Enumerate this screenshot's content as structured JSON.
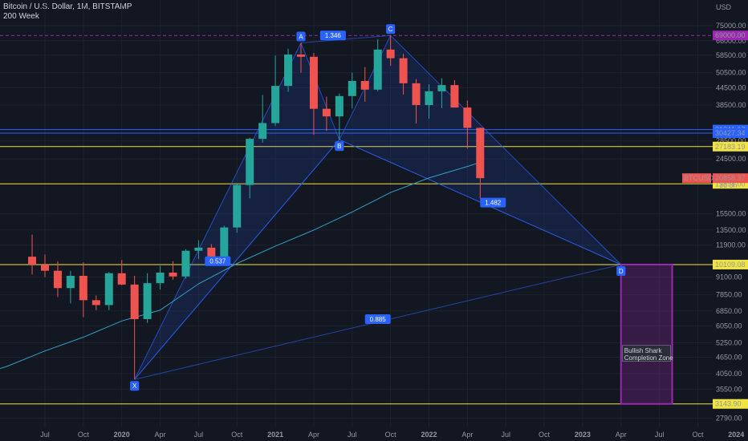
{
  "header": {
    "symbol": "Bitcoin / U.S. Dollar, 1M, BITSTAMP",
    "indicator": "200 Week"
  },
  "colors": {
    "bg": "#131722",
    "up": "#26a69a",
    "down": "#ef5350",
    "ma": "#2fa0c8",
    "pattern": "#2962ff",
    "yellow": "#f0e442",
    "zone": "#9c27b0"
  },
  "chart_data": {
    "type": "candlestick",
    "y_scale": "log",
    "currency_label": "USD",
    "ylim": [
      2600,
      88000
    ],
    "y_ticks": [
      2790,
      3550,
      4050,
      4650,
      5250,
      6050,
      6850,
      7850,
      9100,
      11900,
      13500,
      15500,
      24500,
      28500,
      38500,
      44500,
      50500,
      58500,
      66000,
      75000
    ],
    "y_tick_labels": [
      "2790.00",
      "3550.00",
      "4050.00",
      "4650.00",
      "5250.00",
      "6050.00",
      "6850.00",
      "7850.00",
      "9100.00",
      "11900.00",
      "13500.00",
      "15500.00",
      "24500.00",
      "28500.00",
      "38500.00",
      "44500.00",
      "50500.00",
      "58500.00",
      "66000.00",
      "75000.00"
    ],
    "x_tick_labels": [
      "Jul",
      "Oct",
      "2020",
      "Apr",
      "Jul",
      "Oct",
      "2021",
      "Apr",
      "Jul",
      "Oct",
      "2022",
      "Apr",
      "Jul",
      "Oct",
      "2023",
      "Apr",
      "Jul",
      "Oct",
      "2024"
    ],
    "x_tick_months": [
      0,
      3,
      6,
      9,
      12,
      15,
      18,
      21,
      24,
      27,
      30,
      33,
      36,
      39,
      42,
      45,
      48,
      51,
      54
    ],
    "month0": "Jul 2019",
    "candles": [
      {
        "m": -1,
        "o": 10800,
        "h": 13000,
        "l": 9300,
        "c": 10100
      },
      {
        "m": 0,
        "o": 10100,
        "h": 11000,
        "l": 9100,
        "c": 9600
      },
      {
        "m": 1,
        "o": 9600,
        "h": 10400,
        "l": 7700,
        "c": 8300
      },
      {
        "m": 2,
        "o": 8300,
        "h": 9600,
        "l": 7300,
        "c": 9200
      },
      {
        "m": 3,
        "o": 9200,
        "h": 10300,
        "l": 6500,
        "c": 7500
      },
      {
        "m": 4,
        "o": 7500,
        "h": 7800,
        "l": 6900,
        "c": 7200
      },
      {
        "m": 5,
        "o": 7200,
        "h": 9500,
        "l": 6900,
        "c": 9400
      },
      {
        "m": 6,
        "o": 9400,
        "h": 10500,
        "l": 8500,
        "c": 8550
      },
      {
        "m": 7,
        "o": 8550,
        "h": 9200,
        "l": 3860,
        "c": 6400
      },
      {
        "m": 8,
        "o": 6400,
        "h": 9400,
        "l": 6200,
        "c": 8650
      },
      {
        "m": 9,
        "o": 8650,
        "h": 10000,
        "l": 8200,
        "c": 9450
      },
      {
        "m": 10,
        "o": 9450,
        "h": 10400,
        "l": 8900,
        "c": 9150
      },
      {
        "m": 11,
        "o": 9150,
        "h": 11500,
        "l": 9000,
        "c": 11350
      },
      {
        "m": 12,
        "o": 11350,
        "h": 12400,
        "l": 10600,
        "c": 11650
      },
      {
        "m": 13,
        "o": 11650,
        "h": 12000,
        "l": 10000,
        "c": 10800
      },
      {
        "m": 14,
        "o": 10800,
        "h": 14000,
        "l": 10500,
        "c": 13800
      },
      {
        "m": 15,
        "o": 13800,
        "h": 19800,
        "l": 13200,
        "c": 19700
      },
      {
        "m": 16,
        "o": 19700,
        "h": 29300,
        "l": 17600,
        "c": 29000
      },
      {
        "m": 17,
        "o": 29000,
        "h": 41900,
        "l": 28100,
        "c": 33100
      },
      {
        "m": 18,
        "o": 33100,
        "h": 58300,
        "l": 32300,
        "c": 45200
      },
      {
        "m": 19,
        "o": 45200,
        "h": 61700,
        "l": 43000,
        "c": 58800
      },
      {
        "m": 20,
        "o": 58800,
        "h": 64800,
        "l": 50500,
        "c": 57700
      },
      {
        "m": 21,
        "o": 57700,
        "h": 59600,
        "l": 30000,
        "c": 37300
      },
      {
        "m": 22,
        "o": 37300,
        "h": 41300,
        "l": 31000,
        "c": 35000
      },
      {
        "m": 23,
        "o": 35000,
        "h": 42400,
        "l": 28800,
        "c": 41500
      },
      {
        "m": 24,
        "o": 41500,
        "h": 50500,
        "l": 37400,
        "c": 47100
      },
      {
        "m": 25,
        "o": 47100,
        "h": 52900,
        "l": 39600,
        "c": 43800
      },
      {
        "m": 26,
        "o": 43800,
        "h": 66900,
        "l": 43200,
        "c": 61300
      },
      {
        "m": 27,
        "o": 61300,
        "h": 69000,
        "l": 53500,
        "c": 57000
      },
      {
        "m": 28,
        "o": 57000,
        "h": 59100,
        "l": 42000,
        "c": 46200
      },
      {
        "m": 29,
        "o": 46200,
        "h": 47800,
        "l": 33000,
        "c": 38500
      },
      {
        "m": 30,
        "o": 38500,
        "h": 45800,
        "l": 34300,
        "c": 43200
      },
      {
        "m": 31,
        "o": 43200,
        "h": 48200,
        "l": 37500,
        "c": 45500
      },
      {
        "m": 32,
        "o": 45500,
        "h": 47400,
        "l": 37700,
        "c": 37700
      },
      {
        "m": 33,
        "o": 37700,
        "h": 40000,
        "l": 26700,
        "c": 31800
      },
      {
        "m": 34,
        "o": 31800,
        "h": 31900,
        "l": 17600,
        "c": 20858
      }
    ],
    "ma_200w": [
      [
        -6,
        3900
      ],
      [
        -3,
        4300
      ],
      [
        0,
        4900
      ],
      [
        3,
        5500
      ],
      [
        6,
        6300
      ],
      [
        9,
        6900
      ],
      [
        12,
        8600
      ],
      [
        15,
        10200
      ],
      [
        18,
        11800
      ],
      [
        21,
        13500
      ],
      [
        24,
        15700
      ],
      [
        27,
        18500
      ],
      [
        30,
        20900
      ],
      [
        33,
        23000
      ],
      [
        34,
        23800
      ]
    ],
    "pattern": {
      "name": "Bullish Shark",
      "points": [
        {
          "label": "X",
          "m": 7,
          "price": 3860
        },
        {
          "label": "A",
          "m": 20,
          "price": 64800
        },
        {
          "label": "B",
          "m": 23,
          "price": 28800
        },
        {
          "label": "C",
          "m": 27,
          "price": 69000
        },
        {
          "label": "D",
          "m": 45,
          "price": 10109
        }
      ],
      "ratios": [
        {
          "text": "0.537",
          "m": 13.5,
          "price": 10400
        },
        {
          "text": "1.346",
          "m": 22.5,
          "price": 69000
        },
        {
          "text": "1.482",
          "m": 35,
          "price": 17000
        },
        {
          "text": "0.885",
          "m": 26,
          "price": 6400
        }
      ],
      "zone": {
        "label": "Bullish Shark Completion Zone",
        "m_from": 45,
        "m_to": 49,
        "price_top": 10109,
        "price_bottom": 3143.9
      }
    },
    "horizontal_levels": [
      {
        "price": 69000,
        "label": "69000.00",
        "color": "#9c27b0",
        "style": "dashed"
      },
      {
        "price": 31341.17,
        "label": "31341.17",
        "color": "#2962ff",
        "style": "solid"
      },
      {
        "price": 30427.34,
        "label": "30427.34",
        "color": "#2962ff",
        "style": "solid"
      },
      {
        "price": 27183.19,
        "label": "27183.19",
        "color": "#f0e442",
        "style": "solid"
      },
      {
        "price": 19891.0,
        "label": "19891.00",
        "color": "#f0e442",
        "style": "solid"
      },
      {
        "price": 10109.08,
        "label": "10109.08",
        "color": "#f0e442",
        "style": "solid"
      },
      {
        "price": 3143.9,
        "label": "3143.90",
        "color": "#f0e442",
        "style": "solid"
      }
    ],
    "last_price": {
      "symbol": "BTCUSD",
      "price": "20858.37",
      "countdown": "3d 3h",
      "value": 20858.37
    }
  }
}
